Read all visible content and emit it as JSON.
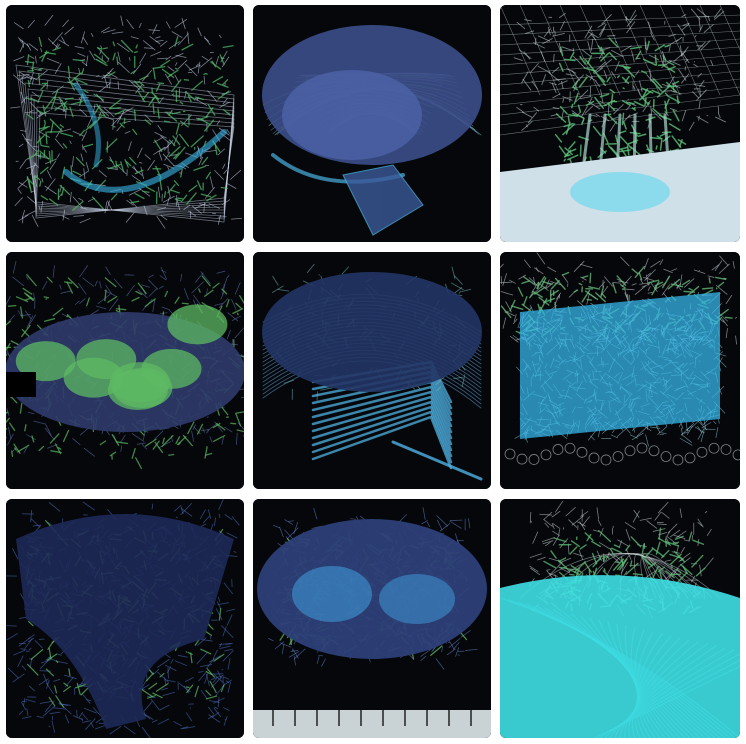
{
  "gallery": {
    "tiles": [
      {
        "name": "wireframe-box-mesh",
        "style": "box",
        "colors": {
          "bg": "#05070a",
          "line": "#c9d3e8",
          "accent": "#4fb86a",
          "glow": "#39b6e6"
        }
      },
      {
        "name": "translucent-folded-shell",
        "style": "shell",
        "colors": {
          "bg": "#05070a",
          "line": "#6f8fd1",
          "accent": "#6fd0a0",
          "glow": "#4ab0e0"
        }
      },
      {
        "name": "web-canopy-over-floor",
        "style": "canopy",
        "colors": {
          "bg": "#05070a",
          "line": "#d0dde0",
          "accent": "#5cc07a",
          "glow": "#6fd8f0",
          "floor": "#cfe0e8"
        }
      },
      {
        "name": "green-blob-surface",
        "style": "blobs",
        "colors": {
          "bg": "#05070a",
          "line": "#6a7ec0",
          "accent": "#5dba63",
          "glow": "#4aa0d0"
        }
      },
      {
        "name": "stacked-contour-dome",
        "style": "dome",
        "colors": {
          "bg": "#05070a",
          "line": "#5e9fd6",
          "accent": "#7bc7c8",
          "glow": "#4fb1e3"
        }
      },
      {
        "name": "cyan-volume-cube",
        "style": "cube",
        "colors": {
          "bg": "#05070a",
          "line": "#c8d0d8",
          "accent": "#6ac080",
          "glow": "#35b6e8"
        }
      },
      {
        "name": "organic-mesh-drape",
        "style": "drape",
        "colors": {
          "bg": "#05070a",
          "line": "#4f6fbf",
          "accent": "#5fbf6a",
          "glow": "#7a9fe0"
        }
      },
      {
        "name": "brain-like-wireframe",
        "style": "brain",
        "colors": {
          "bg": "#05070a",
          "line": "#6a86d0",
          "accent": "#5dbd5e",
          "glow": "#3fa0e0",
          "floor": "#c9d3d6"
        }
      },
      {
        "name": "cyan-wave-under-dome",
        "style": "wave",
        "colors": {
          "bg": "#05070a",
          "line": "#d7e2e6",
          "accent": "#5fc07a",
          "glow": "#3fe0e6"
        }
      }
    ]
  }
}
